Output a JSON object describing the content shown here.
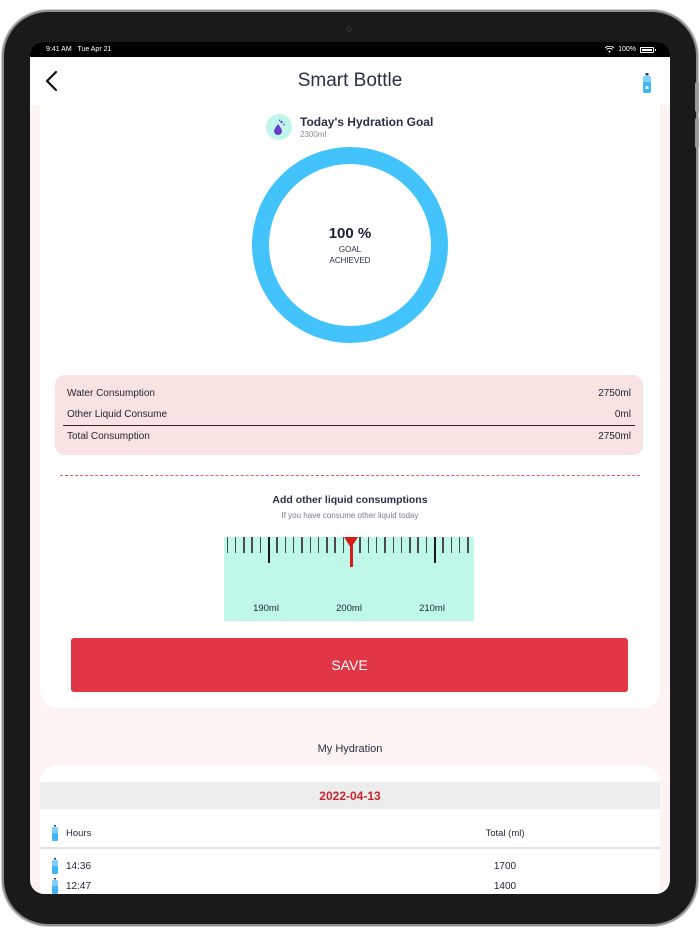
{
  "status_bar": {
    "time": "9:41 AM",
    "date": "Tue Apr 21",
    "battery": "100%"
  },
  "nav": {
    "title": "Smart Bottle",
    "back_icon": "chevron-left-icon",
    "right_icon": "bottle-icon"
  },
  "goal": {
    "title": "Today's Hydration Goal",
    "target": "2300ml",
    "icon": "water-drop-icon",
    "progress_percent": "100 %",
    "progress_label_1": "GOAL",
    "progress_label_2": "ACHIEVED",
    "ring_color": "#42c3fb"
  },
  "summary": {
    "rows": [
      {
        "label": "Water Consumption",
        "value": "2750ml"
      },
      {
        "label": "Other Liquid Consume",
        "value": "0ml"
      }
    ],
    "total": {
      "label": "Total Consumption",
      "value": "2750ml"
    }
  },
  "add_liquid": {
    "title": "Add other liquid consumptions",
    "subtitle": "If you have consume other liquid today",
    "ruler_labels": [
      "190ml",
      "200ml",
      "210ml"
    ],
    "selected_value": "200ml",
    "save_label": "SAVE",
    "save_color": "#e03646"
  },
  "history": {
    "title": "My Hydration",
    "date": "2022-04-13",
    "columns": [
      "Hours",
      "Total (ml)"
    ],
    "rows": [
      {
        "hour": "14:36",
        "total": "1700"
      },
      {
        "hour": "12:47",
        "total": "1400"
      }
    ]
  }
}
